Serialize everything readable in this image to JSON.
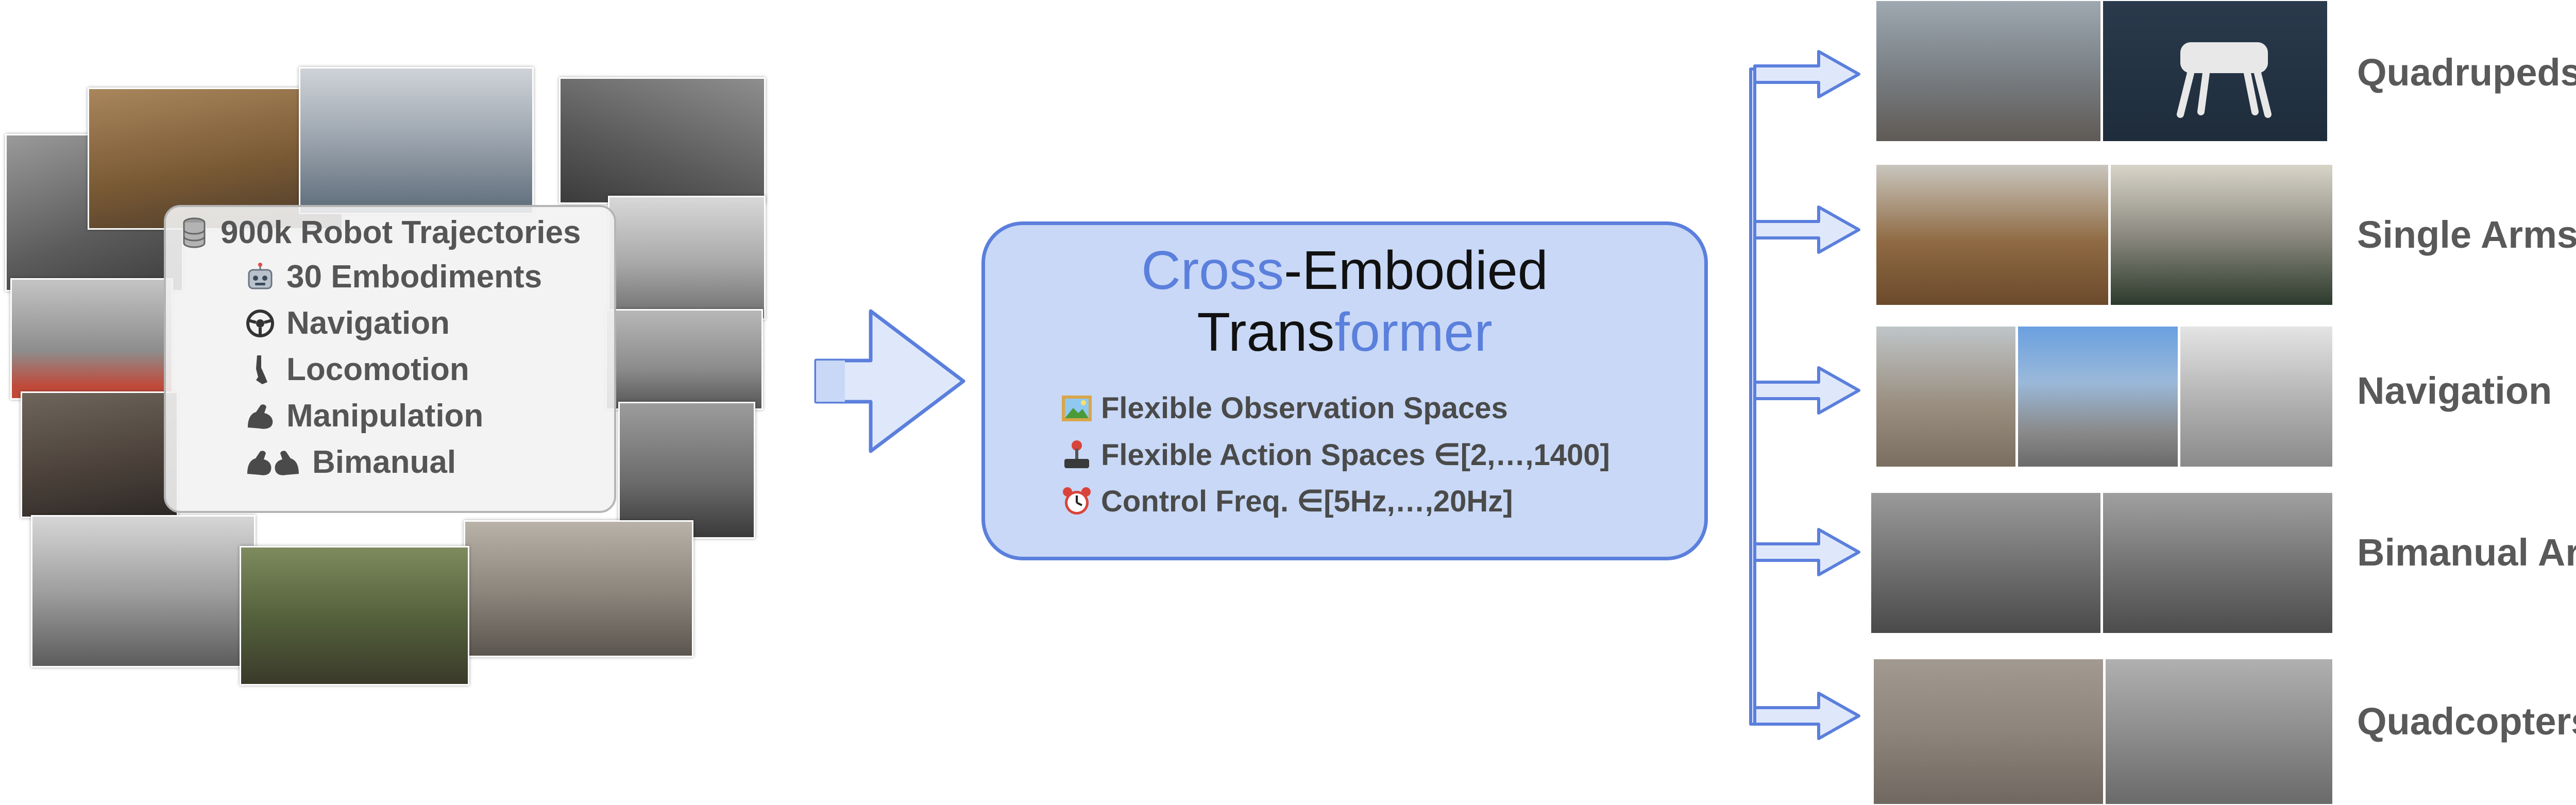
{
  "dataset": {
    "title": "900k Robot Trajectories",
    "items": [
      "30 Embodiments",
      "Navigation",
      "Locomotion",
      "Manipulation",
      "Bimanual"
    ]
  },
  "model": {
    "title_accent_1": "Cross",
    "title_part_1": "-Embodied",
    "title_part_2": "Trans",
    "title_accent_2": "former",
    "features": [
      "Flexible Observation Spaces",
      "Flexible Action Spaces ∈[2,…,1400]",
      "Control Freq. ∈[5Hz,…,20Hz]"
    ]
  },
  "outputs": [
    "Quadrupeds",
    "Single Arms",
    "Navigation",
    "Bimanual Arms",
    "Quadcopters"
  ],
  "colors": {
    "accent": "#5b7fdc",
    "box_fill": "#c8d8f6",
    "arrow_fill": "#dfe8fb"
  },
  "icons": [
    "database-icon",
    "robot-face-icon",
    "steering-wheel-icon",
    "leg-icon",
    "flexed-arm-icon",
    "two-arms-icon",
    "picture-icon",
    "joystick-icon",
    "alarm-clock-icon"
  ]
}
